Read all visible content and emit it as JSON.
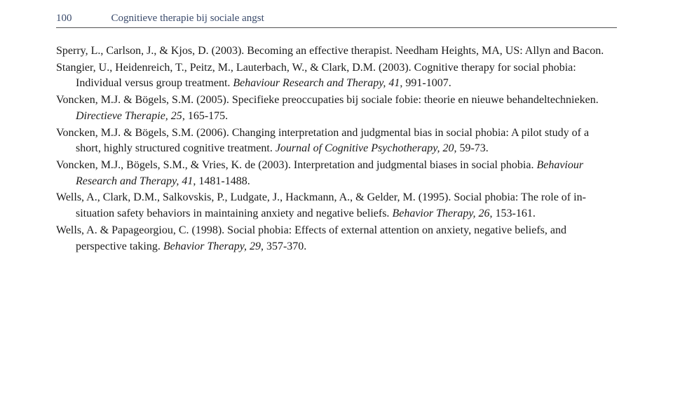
{
  "header": {
    "page_number": "100",
    "running_title": "Cognitieve therapie bij sociale angst"
  },
  "references": [
    {
      "pre": "Sperry, L., Carlson, J., & Kjos, D. (2003). Becoming an effective therapist. Needham Heights, MA, US: Allyn and Bacon.",
      "journal": "",
      "post": ""
    },
    {
      "pre": "Stangier, U., Heidenreich, T., Peitz, M., Lauterbach, W., & Clark, D.M. (2003). Cognitive therapy for social phobia: Individual versus group treatment. ",
      "journal": "Behaviour Research and Therapy, 41",
      "post": ", 991-1007."
    },
    {
      "pre": "Voncken, M.J. & Bögels, S.M. (2005). Specifieke preoccupaties bij sociale fobie: theorie en nieuwe behandeltechnieken. ",
      "journal": "Directieve Therapie, 25",
      "post": ", 165-175."
    },
    {
      "pre": "Voncken, M.J. & Bögels, S.M. (2006). Changing interpretation and judgmental bias in social phobia: A pilot study of a short, highly structured cognitive treatment. ",
      "journal": "Journal of Cognitive Psychotherapy, 20",
      "post": ", 59-73."
    },
    {
      "pre": "Voncken, M.J., Bögels, S.M., & Vries, K. de (2003). Interpretation and judgmental biases in social phobia. ",
      "journal": "Behaviour Research and Therapy, 41",
      "post": ", 1481-1488."
    },
    {
      "pre": "Wells, A., Clark, D.M., Salkovskis, P., Ludgate, J., Hackmann, A., & Gelder, M. (1995). Social phobia: The role of in-situation safety behaviors in maintaining anxiety and negative beliefs. ",
      "journal": "Behavior Therapy, 26",
      "post": ", 153-161."
    },
    {
      "pre": "Wells, A. & Papageorgiou, C. (1998). Social phobia: Effects of external attention on anxiety, negative beliefs, and perspective taking. ",
      "journal": "Behavior Therapy, 29",
      "post": ", 357-370."
    }
  ]
}
